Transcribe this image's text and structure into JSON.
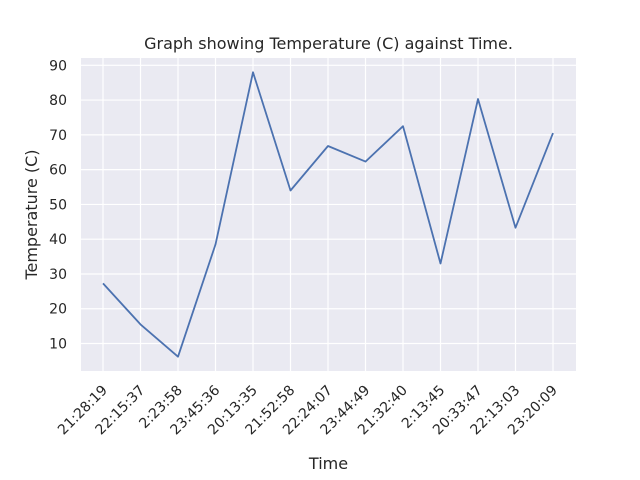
{
  "chart_data": {
    "type": "line",
    "title": "Graph showing Temperature (C) against Time.",
    "xlabel": "Time",
    "ylabel": "Temperature (C)",
    "categories": [
      "21:28:19",
      "22:15:37",
      "2:23:58",
      "23:45:36",
      "20:13:35",
      "21:52:58",
      "22:24:07",
      "23:44:49",
      "21:32:40",
      "2:13:45",
      "20:33:47",
      "22:13:03",
      "23:20:09"
    ],
    "series": [
      {
        "values": [
          27.3,
          15.5,
          6.2,
          38.5,
          88.0,
          54.0,
          66.8,
          62.3,
          72.5,
          33.0,
          80.3,
          43.3,
          70.5
        ]
      }
    ],
    "yticks": [
      10,
      20,
      30,
      40,
      50,
      60,
      70,
      80,
      90
    ],
    "ylim": [
      2.1,
      92.1
    ],
    "xtick_rotation": 45,
    "grid": true,
    "colors": {
      "background": "#eaeaf2",
      "grid": "#ffffff",
      "line": "#4c72b0",
      "text": "#262626"
    }
  }
}
